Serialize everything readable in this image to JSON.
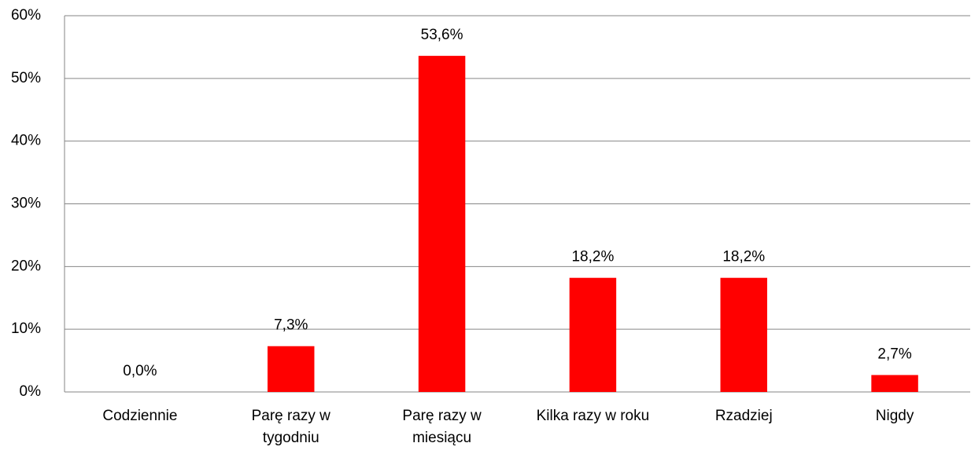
{
  "chart_data": {
    "type": "bar",
    "categories": [
      "Codziennie",
      "Parę razy w\ntygodniu",
      "Parę razy w\nmiesiącu",
      "Kilka razy w roku",
      "Rzadziej",
      "Nigdy"
    ],
    "values": [
      0.0,
      7.3,
      53.6,
      18.2,
      18.2,
      2.7
    ],
    "value_labels": [
      "0,0%",
      "7,3%",
      "53,6%",
      "18,2%",
      "18,2%",
      "2,7%"
    ],
    "color": "#ff0000",
    "ylim": [
      0,
      60
    ],
    "yticks": [
      {
        "value": 0,
        "label": "0%"
      },
      {
        "value": 10,
        "label": "10%"
      },
      {
        "value": 20,
        "label": "20%"
      },
      {
        "value": 30,
        "label": "30%"
      },
      {
        "value": 40,
        "label": "40%"
      },
      {
        "value": 50,
        "label": "50%"
      },
      {
        "value": 60,
        "label": "60%"
      }
    ],
    "grid": true
  }
}
